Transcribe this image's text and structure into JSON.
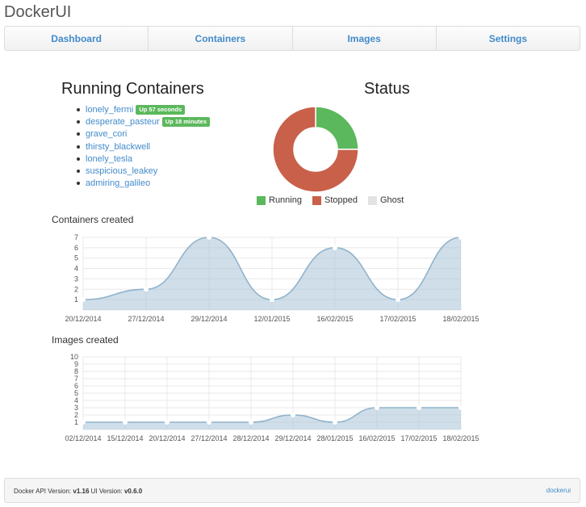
{
  "brand": "DockerUI",
  "nav": [
    "Dashboard",
    "Containers",
    "Images",
    "Settings"
  ],
  "running": {
    "title": "Running Containers",
    "containers": [
      {
        "name": "lonely_fermi",
        "status": "Up 57 seconds"
      },
      {
        "name": "desperate_pasteur",
        "status": "Up 18 minutes"
      },
      {
        "name": "grave_cori",
        "status": ""
      },
      {
        "name": "thirsty_blackwell",
        "status": ""
      },
      {
        "name": "lonely_tesla",
        "status": ""
      },
      {
        "name": "suspicious_leakey",
        "status": ""
      },
      {
        "name": "admiring_galileo",
        "status": ""
      }
    ]
  },
  "status": {
    "title": "Status",
    "legend": [
      {
        "label": "Running",
        "color": "#5cb85c"
      },
      {
        "label": "Stopped",
        "color": "#c9604a"
      },
      {
        "label": "Ghost",
        "color": "#e2e4e4"
      }
    ]
  },
  "chart_data": [
    {
      "type": "pie",
      "categories": [
        "Running",
        "Stopped",
        "Ghost"
      ],
      "values": [
        2,
        6,
        0
      ],
      "colors": [
        "#5cb85c",
        "#c9604a",
        "#e2e4e4"
      ],
      "legend": "bottom",
      "title": "Status"
    },
    {
      "type": "area",
      "title": "Containers created",
      "x": [
        "20/12/2014",
        "27/12/2014",
        "29/12/2014",
        "12/01/2015",
        "16/02/2015",
        "17/02/2015",
        "18/02/2015"
      ],
      "values": [
        1,
        2,
        7,
        1,
        6,
        1,
        7
      ],
      "ylim": [
        0,
        7
      ],
      "yticks": [
        1,
        2,
        3,
        4,
        5,
        6,
        7
      ],
      "grid": true,
      "color": "#a7c3d7"
    },
    {
      "type": "area",
      "title": "Images created",
      "x": [
        "02/12/2014",
        "15/12/2014",
        "20/12/2014",
        "27/12/2014",
        "28/12/2014",
        "29/12/2014",
        "28/01/2015",
        "16/02/2015",
        "17/02/2015",
        "18/02/2015"
      ],
      "values": [
        1,
        1,
        1,
        1,
        1,
        2,
        1,
        3,
        3,
        3
      ],
      "ylim": [
        0,
        10
      ],
      "yticks": [
        1,
        2,
        3,
        4,
        5,
        6,
        7,
        8,
        9,
        10
      ],
      "grid": true,
      "color": "#a7c3d7"
    }
  ],
  "footer": {
    "api_label": "Docker API Version: ",
    "api_version": "v1.16",
    "ui_label": " UI Version: ",
    "ui_version": "v0.6.0",
    "link": "dockerui"
  }
}
